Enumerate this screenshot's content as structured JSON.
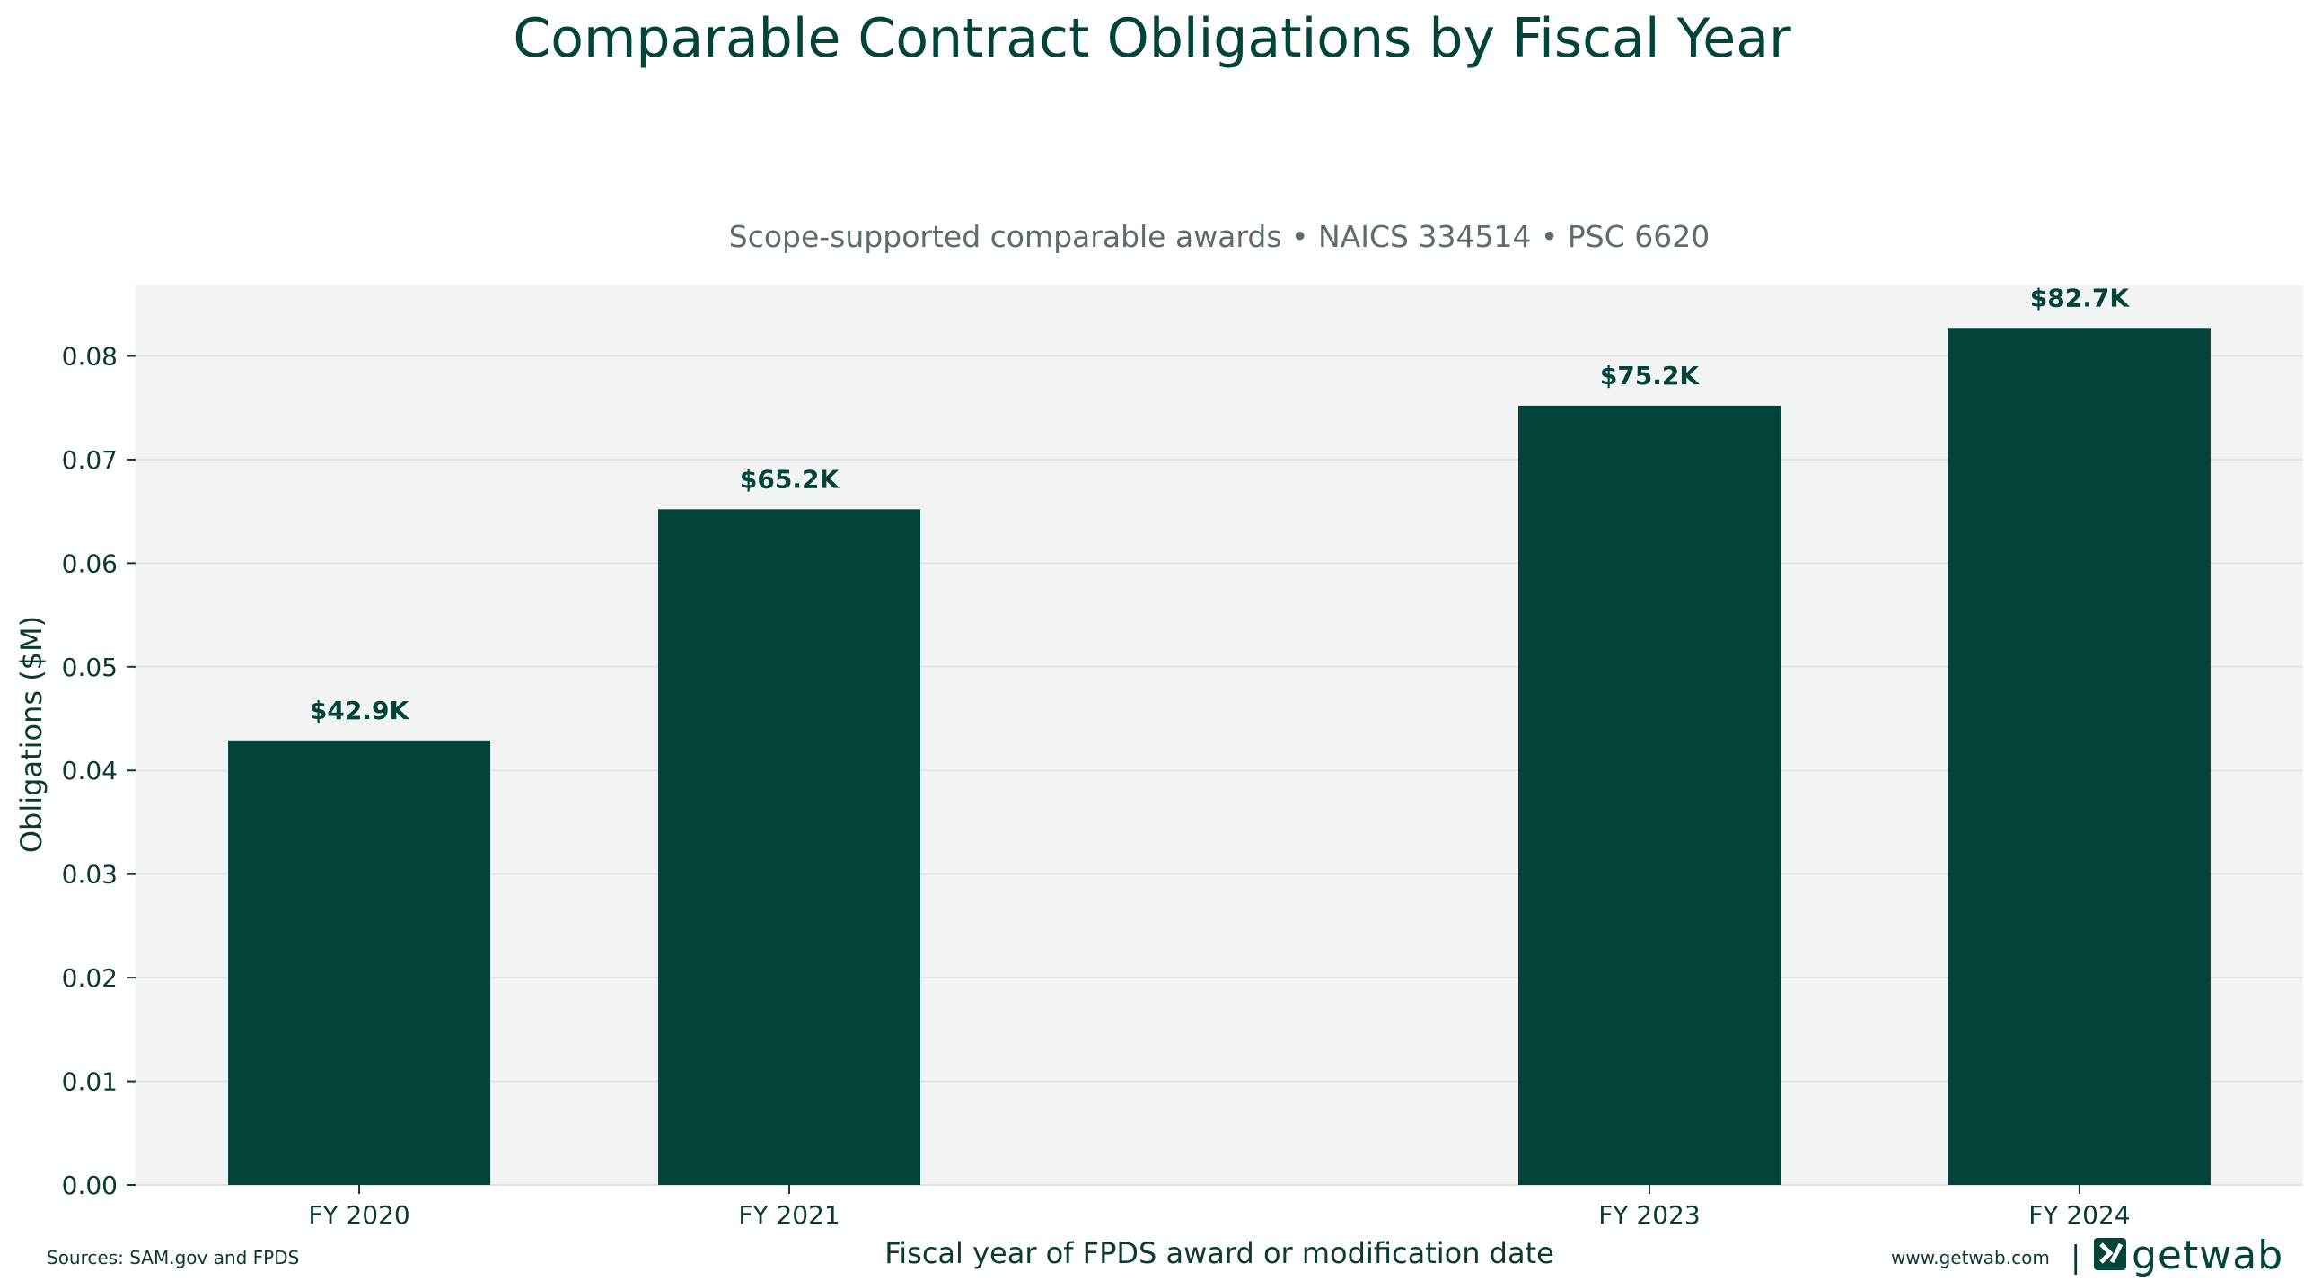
{
  "chart_data": {
    "type": "bar",
    "title": "Comparable Contract Obligations by Fiscal Year",
    "subtitle": "Scope-supported comparable awards • NAICS 334514 • PSC 6620",
    "xlabel": "Fiscal year of FPDS award or modification date",
    "ylabel": "Obligations ($M)",
    "ylim": [
      0,
      0.0868
    ],
    "yticks": [
      "0.00",
      "0.01",
      "0.02",
      "0.03",
      "0.04",
      "0.05",
      "0.06",
      "0.07",
      "0.08"
    ],
    "x_positions": [
      2020,
      2021,
      2023,
      2024
    ],
    "categories": [
      "FY 2020",
      "FY 2021",
      "FY 2023",
      "FY 2024"
    ],
    "values": [
      0.0429,
      0.0652,
      0.0752,
      0.0827
    ],
    "data_labels": [
      "$42.9K",
      "$65.2K",
      "$75.2K",
      "$82.7K"
    ],
    "grid": true,
    "bar_color": "#02443a",
    "plot_background": "#f2f4f3"
  },
  "footer": {
    "sources": "Sources: SAM.gov and FPDS",
    "website": "www.getwab.com",
    "separator": "|",
    "logo_text": "getwab"
  }
}
